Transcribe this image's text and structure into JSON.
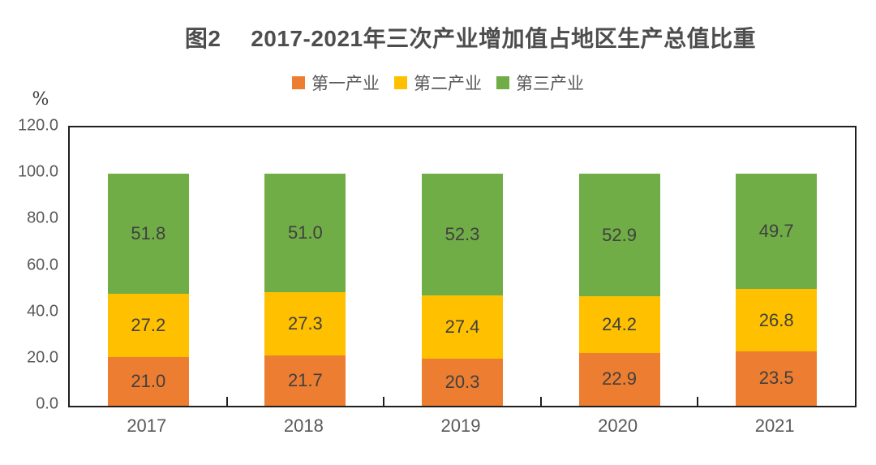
{
  "chart_data": {
    "type": "bar",
    "stacked": true,
    "title": "图2　 2017-2021年三次产业增加值占地区生产总值比重",
    "ylabel": "%",
    "xlabel": "",
    "categories": [
      "2017",
      "2018",
      "2019",
      "2020",
      "2021"
    ],
    "series": [
      {
        "name": "第一产业",
        "color": "#ED7D31",
        "values": [
          21.0,
          21.7,
          20.3,
          22.9,
          23.5
        ]
      },
      {
        "name": "第二产业",
        "color": "#FFC000",
        "values": [
          27.2,
          27.3,
          27.4,
          24.2,
          26.8
        ]
      },
      {
        "name": "第三产业",
        "color": "#70AD47",
        "values": [
          51.8,
          51.0,
          52.3,
          52.9,
          49.7
        ]
      }
    ],
    "ylim": [
      0,
      120
    ],
    "yticks": [
      120,
      100,
      80,
      60,
      40,
      20,
      0
    ],
    "ytick_format_decimals": 1,
    "grid": false,
    "legend_position": "top",
    "data_labels": true,
    "label_color": "#404040",
    "axis_text_color": "#595959",
    "frame_color": "#1f1f1f"
  }
}
